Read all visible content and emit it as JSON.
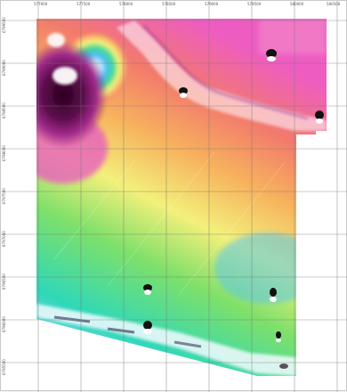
{
  "map": {
    "type": "geophysical-grid-image",
    "colormap": [
      "#e8f8ff",
      "#4fbef0",
      "#2fd8b8",
      "#7ee06a",
      "#f3f07a",
      "#f7b25d",
      "#f27a6c",
      "#ee5cc2",
      "#5a0c4a"
    ],
    "grid_lines": true,
    "grid_color": "#777777",
    "x_ticks": [
      "577000",
      "577500",
      "578000",
      "578500",
      "579000",
      "579500",
      "580000",
      "580500"
    ],
    "y_ticks": [
      "6799500",
      "6799000",
      "6798500",
      "6798000",
      "6797500",
      "6797000",
      "6796500",
      "6796000",
      "6795500"
    ],
    "markers_visible": true
  }
}
